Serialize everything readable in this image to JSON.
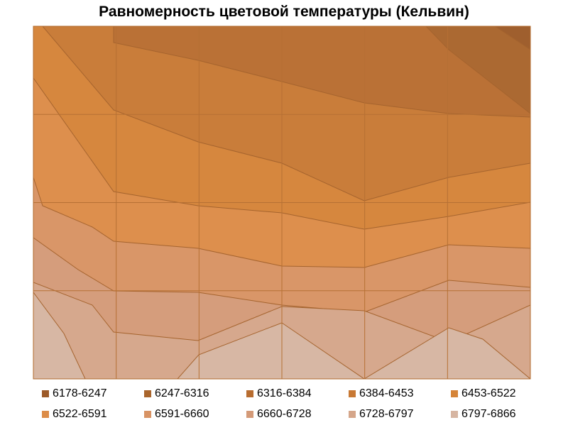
{
  "chart_data": {
    "type": "area",
    "subtype": "contour",
    "title": "Равномерность цветовой температуры (Кельвин)",
    "legend": {
      "position": "bottom",
      "columns": 5,
      "entries": [
        {
          "label": "6178-6247",
          "color": "#9c5a28"
        },
        {
          "label": "6247-6316",
          "color": "#a9652c"
        },
        {
          "label": "6316-6384",
          "color": "#b86d30"
        },
        {
          "label": "6384-6453",
          "color": "#c87934"
        },
        {
          "label": "6453-6522",
          "color": "#d58438"
        },
        {
          "label": "6522-6591",
          "color": "#dc8c48"
        },
        {
          "label": "6591-6660",
          "color": "#d89364"
        },
        {
          "label": "6660-6728",
          "color": "#d49a78"
        },
        {
          "label": "6728-6797",
          "color": "#d5a68a"
        },
        {
          "label": "6797-6866",
          "color": "#d6b5a2"
        }
      ]
    },
    "grid": true,
    "grid_columns": 6,
    "grid_rows": 4
  }
}
